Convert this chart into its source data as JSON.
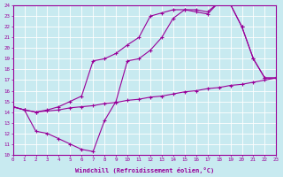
{
  "xlabel": "Windchill (Refroidissement éolien,°C)",
  "ylabel": "",
  "bg_color": "#c8eaf0",
  "line_color": "#990099",
  "grid_color": "#ffffff",
  "xmin": 0,
  "xmax": 23,
  "ymin": 10,
  "ymax": 24,
  "line1_x": [
    0,
    1,
    2,
    3,
    4,
    5,
    6,
    7,
    8,
    9,
    10,
    11,
    12,
    13,
    14,
    15,
    16,
    17,
    18,
    19,
    20,
    21,
    22,
    23
  ],
  "line1_y": [
    14.5,
    14.2,
    12.2,
    12.0,
    11.5,
    11.0,
    10.5,
    10.3,
    13.2,
    15.0,
    18.8,
    19.0,
    19.8,
    21.0,
    22.8,
    23.6,
    23.6,
    23.4,
    24.3,
    24.1,
    22.0,
    19.0,
    17.2,
    17.2
  ],
  "line2_x": [
    0,
    1,
    2,
    3,
    4,
    5,
    6,
    7,
    8,
    9,
    10,
    11,
    12,
    13,
    14,
    15,
    16,
    17,
    18,
    19,
    20,
    21,
    22,
    23
  ],
  "line2_y": [
    14.5,
    14.2,
    14.0,
    14.2,
    14.5,
    15.0,
    15.5,
    18.8,
    19.0,
    19.5,
    20.3,
    21.0,
    23.0,
    23.3,
    23.6,
    23.6,
    23.4,
    23.2,
    24.3,
    24.1,
    22.0,
    19.0,
    17.2,
    17.2
  ],
  "line3_x": [
    0,
    1,
    2,
    3,
    4,
    5,
    6,
    7,
    8,
    9,
    10,
    11,
    12,
    13,
    14,
    15,
    16,
    17,
    18,
    19,
    20,
    21,
    22,
    23
  ],
  "line3_y": [
    14.5,
    14.2,
    14.0,
    14.1,
    14.2,
    14.4,
    14.5,
    14.6,
    14.8,
    14.9,
    15.1,
    15.2,
    15.4,
    15.5,
    15.7,
    15.9,
    16.0,
    16.2,
    16.3,
    16.5,
    16.6,
    16.8,
    17.0,
    17.2
  ]
}
